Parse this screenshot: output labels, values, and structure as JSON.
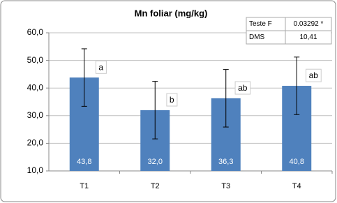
{
  "chart_data": {
    "type": "bar",
    "title": "Mn foliar (mg/kg)",
    "categories": [
      "T1",
      "T2",
      "T3",
      "T4"
    ],
    "values": [
      43.8,
      32.0,
      36.3,
      40.8
    ],
    "value_labels": [
      "43,8",
      "32,0",
      "36,3",
      "40,8"
    ],
    "errors": [
      10.41,
      10.41,
      10.41,
      10.41
    ],
    "letters": [
      "a",
      "b",
      "ab",
      "ab"
    ],
    "color": "#4f81bd",
    "ylim": [
      10,
      60
    ],
    "yticks": [
      {
        "value": 10,
        "label": "10,0"
      },
      {
        "value": 20,
        "label": "20,0"
      },
      {
        "value": 30,
        "label": "30,0"
      },
      {
        "value": 40,
        "label": "40,0"
      },
      {
        "value": 50,
        "label": "50,0"
      },
      {
        "value": 60,
        "label": "60,0"
      }
    ],
    "grid": true,
    "table": {
      "rows": [
        [
          "Teste F",
          "0.03292 *"
        ],
        [
          "DMS",
          "10,41"
        ]
      ]
    }
  }
}
